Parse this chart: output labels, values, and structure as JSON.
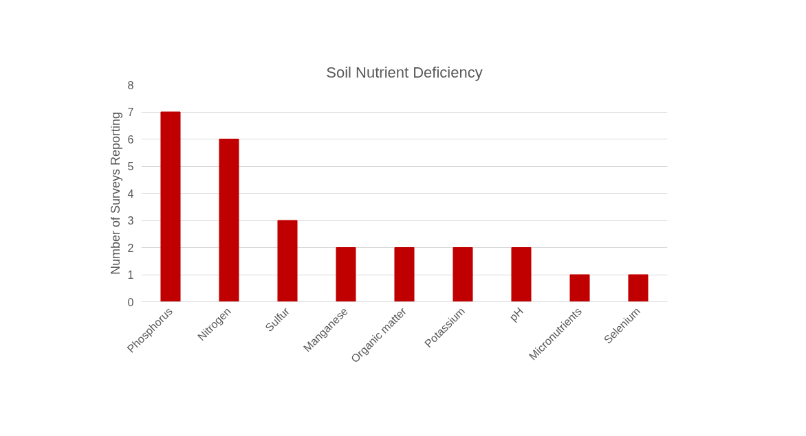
{
  "chart_data": {
    "type": "bar",
    "title": "Soil Nutrient Deficiency",
    "ylabel": "Number of Surveys Reporting",
    "categories": [
      "Phosphorus",
      "Nitrogen",
      "Sulfur",
      "Manganese",
      "Organic matter",
      "Potassium",
      "pH",
      "Micronutrients",
      "Selenium"
    ],
    "values": [
      7,
      6,
      3,
      2,
      2,
      2,
      2,
      1,
      1
    ],
    "color": "#c00000",
    "ylim": [
      0,
      8
    ],
    "yticks": [
      0,
      1,
      2,
      3,
      4,
      5,
      6,
      7,
      8
    ],
    "grid": "y"
  }
}
